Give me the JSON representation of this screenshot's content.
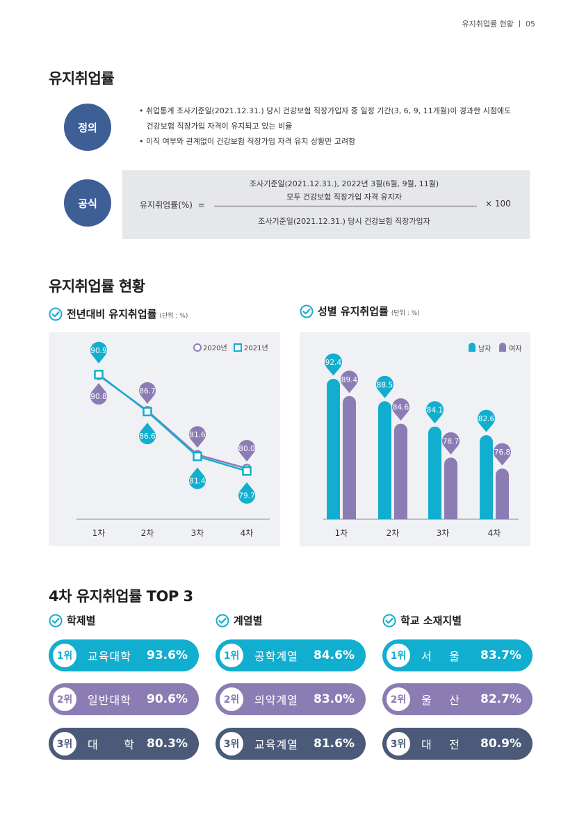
{
  "header": {
    "text": "유지취업률 현황 ㅣ 05"
  },
  "section1": {
    "title": "유지취업률",
    "definition_label": "정의",
    "definition_lines": [
      "• 취업통계 조사기준일(2021.12.31.) 당시 건강보험 직장가입자 중 일정 기간(3, 6, 9, 11개월)이 경과한 시점에도",
      "   건강보험 직장가입 자격이 유지되고 있는 비율",
      "• 이직 여부와 관계없이 건강보험 직장가입 자격 유지 상황만 고려함"
    ],
    "formula_label": "공식",
    "formula": {
      "lhs": "유지취업률(%)  =",
      "numerator_line1": "조사기준일(2021.12.31.), 2022년 3월(6월, 9월, 11월)",
      "numerator_line2": "모두 건강보험 직장가입 자격 유지자",
      "denominator": "조사기준일(2021.12.31.) 당시 건강보험 직장가입자",
      "multiplier": "× 100"
    }
  },
  "section2": {
    "title": "유지취업률 현황",
    "chart1_title": "전년대비 유지취업률",
    "chart1_unit": "(단위 : %)",
    "chart2_title": "성별 유지취업률",
    "chart2_unit": "(단위 : %)"
  },
  "colors": {
    "teal": "#12aecf",
    "purple": "#8c7cb4",
    "navy": "#4a5a78",
    "badge": "#3e5e96"
  },
  "chart_data": [
    {
      "type": "line",
      "title": "전년대비 유지취업률",
      "categories": [
        "1차",
        "2차",
        "3차",
        "4차"
      ],
      "series": [
        {
          "name": "2020년",
          "values": [
            90.8,
            86.7,
            81.6,
            80.0
          ]
        },
        {
          "name": "2021년",
          "values": [
            90.9,
            86.6,
            81.4,
            79.7
          ]
        }
      ],
      "ylim": [
        76,
        94
      ],
      "legend": "top-right",
      "grid": false
    },
    {
      "type": "bar",
      "title": "성별 유지취업률",
      "categories": [
        "1차",
        "2차",
        "3차",
        "4차"
      ],
      "series": [
        {
          "name": "남자",
          "values": [
            92.4,
            88.5,
            84.1,
            82.6
          ]
        },
        {
          "name": "여자",
          "values": [
            89.4,
            84.6,
            78.7,
            76.8
          ]
        }
      ],
      "legend": "top-right",
      "grid": false
    }
  ],
  "section3": {
    "title": "4차 유지취업률 TOP 3",
    "groups": [
      {
        "title": "학제별",
        "items": [
          {
            "rank": "1위",
            "name": "교육대학",
            "value": "93.6%"
          },
          {
            "rank": "2위",
            "name": "일반대학",
            "value": "90.6%"
          },
          {
            "rank": "3위",
            "name": "대      학",
            "value": "80.3%"
          }
        ]
      },
      {
        "title": "계열별",
        "items": [
          {
            "rank": "1위",
            "name": "공학계열",
            "value": "84.6%"
          },
          {
            "rank": "2위",
            "name": "의약계열",
            "value": "83.0%"
          },
          {
            "rank": "3위",
            "name": "교육계열",
            "value": "81.6%"
          }
        ]
      },
      {
        "title": "학교 소재지별",
        "items": [
          {
            "rank": "1위",
            "name": "서    울",
            "value": "83.7%"
          },
          {
            "rank": "2위",
            "name": "울    산",
            "value": "82.7%"
          },
          {
            "rank": "3위",
            "name": "대    전",
            "value": "80.9%"
          }
        ]
      }
    ]
  }
}
